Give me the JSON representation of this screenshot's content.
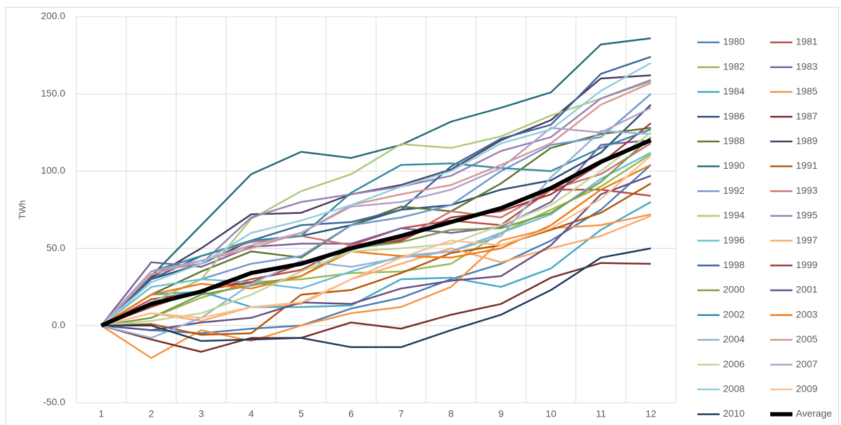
{
  "chart_data": {
    "type": "line",
    "y_label": "TWh",
    "categories": [
      "1",
      "2",
      "3",
      "4",
      "5",
      "6",
      "7",
      "8",
      "9",
      "10",
      "11",
      "12"
    ],
    "ylim": [
      -50,
      200
    ],
    "yticks": [
      {
        "value": -50,
        "label": "-50.0"
      },
      {
        "value": 0,
        "label": "0.0"
      },
      {
        "value": 50,
        "label": "50.0"
      },
      {
        "value": 100,
        "label": "100.0"
      },
      {
        "value": 150,
        "label": "150.0"
      },
      {
        "value": 200,
        "label": "200.0"
      }
    ],
    "grid": true,
    "legend": "right",
    "series": [
      {
        "name": "1980",
        "color": "#4a7ebb",
        "values": [
          0,
          -3,
          -5,
          -2,
          0,
          11,
          18,
          30,
          40,
          55,
          75,
          104
        ]
      },
      {
        "name": "1981",
        "color": "#be4b48",
        "values": [
          0,
          17,
          22,
          30,
          36,
          52,
          63,
          68,
          65,
          88,
          88,
          84
        ]
      },
      {
        "name": "1982",
        "color": "#98b954",
        "values": [
          0,
          5,
          18,
          28,
          30,
          34,
          35,
          40,
          60,
          75,
          90,
          111
        ]
      },
      {
        "name": "1983",
        "color": "#7d60a0",
        "values": [
          0,
          41,
          38,
          51,
          53,
          53,
          63,
          60,
          64,
          80,
          117,
          120
        ]
      },
      {
        "name": "1984",
        "color": "#46aac5",
        "values": [
          0,
          20,
          22,
          12,
          12,
          13,
          30,
          31,
          25,
          37,
          62,
          80
        ]
      },
      {
        "name": "1985",
        "color": "#f69544",
        "values": [
          0,
          -21,
          -3,
          -10,
          0,
          8,
          12,
          25,
          55,
          63,
          65,
          72
        ]
      },
      {
        "name": "1986",
        "color": "#2c4d75",
        "values": [
          0,
          30,
          40,
          55,
          58,
          65,
          75,
          78,
          88,
          94,
          112,
          143
        ]
      },
      {
        "name": "1987",
        "color": "#772c2a",
        "values": [
          0,
          -9,
          -17,
          -8,
          -8,
          2,
          -2,
          7,
          14,
          31,
          40.5,
          40
        ]
      },
      {
        "name": "1988",
        "color": "#5f7530",
        "values": [
          0,
          20,
          35,
          48,
          44,
          65,
          77,
          74,
          92,
          115,
          124,
          128
        ]
      },
      {
        "name": "1989",
        "color": "#4d3b62",
        "values": [
          0,
          31,
          50,
          72,
          73,
          85,
          91,
          101,
          120,
          133,
          160,
          162
        ]
      },
      {
        "name": "1990",
        "color": "#276a7c",
        "values": [
          0,
          32,
          65,
          98,
          112.5,
          108.5,
          117,
          132,
          141,
          151,
          182,
          186
        ]
      },
      {
        "name": "1991",
        "color": "#b65708",
        "values": [
          0,
          1,
          -6,
          -5,
          20,
          23,
          34,
          47,
          52,
          62,
          73,
          92
        ]
      },
      {
        "name": "1992",
        "color": "#729aca",
        "values": [
          0,
          15,
          30,
          40,
          45,
          65,
          70,
          78,
          100,
          117,
          122,
          150
        ]
      },
      {
        "name": "1993",
        "color": "#cd7371",
        "values": [
          0,
          35,
          45,
          54,
          58,
          52,
          56,
          74,
          70,
          88,
          98,
          118
        ]
      },
      {
        "name": "1994",
        "color": "#afc97a",
        "values": [
          0,
          15,
          30,
          69,
          87,
          98,
          117.5,
          115,
          122.5,
          136,
          147,
          158
        ]
      },
      {
        "name": "1995",
        "color": "#9983b5",
        "values": [
          0,
          35,
          40,
          70,
          80,
          85,
          90,
          97,
          113,
          122,
          147,
          159
        ]
      },
      {
        "name": "1996",
        "color": "#6fbdd1",
        "values": [
          0,
          25,
          30,
          28,
          24,
          35,
          45,
          48,
          60,
          72,
          95,
          112
        ]
      },
      {
        "name": "1997",
        "color": "#f9ab6b",
        "values": [
          0,
          8,
          3,
          12,
          14,
          30,
          40,
          50,
          41,
          50,
          58,
          71
        ]
      },
      {
        "name": "1998",
        "color": "#3a679c",
        "values": [
          0,
          30,
          45,
          55,
          65,
          67,
          75,
          103,
          121,
          130,
          163,
          174
        ]
      },
      {
        "name": "1999",
        "color": "#9f3b38",
        "values": [
          0,
          12,
          23,
          28,
          40,
          50,
          55,
          70,
          74,
          85,
          105,
          131
        ]
      },
      {
        "name": "2000",
        "color": "#7f9a48",
        "values": [
          0,
          5,
          20,
          26,
          32,
          50,
          54,
          62,
          63,
          73,
          93,
          122
        ]
      },
      {
        "name": "2001",
        "color": "#664f86",
        "values": [
          0,
          -3,
          2,
          5,
          15,
          14,
          24,
          29,
          32,
          52,
          85,
          97
        ]
      },
      {
        "name": "2002",
        "color": "#358ca3",
        "values": [
          0,
          35,
          45,
          55,
          58,
          86,
          104,
          105,
          102,
          100,
          115,
          127
        ]
      },
      {
        "name": "2003",
        "color": "#f27a14",
        "values": [
          0,
          20,
          27,
          24,
          32,
          48,
          45,
          44,
          50,
          65,
          88,
          104
        ]
      },
      {
        "name": "2004",
        "color": "#95b3d7",
        "values": [
          0,
          -8,
          5,
          27,
          42,
          38,
          44,
          48,
          58,
          96,
          126,
          124
        ]
      },
      {
        "name": "2005",
        "color": "#d99694",
        "values": [
          0,
          33,
          42,
          50,
          60,
          78,
          85,
          91,
          104,
          118,
          143,
          157
        ]
      },
      {
        "name": "2006",
        "color": "#c3d69b",
        "values": [
          0,
          3,
          8,
          20,
          35,
          48,
          50,
          53,
          65,
          78,
          100,
          125
        ]
      },
      {
        "name": "2007",
        "color": "#b3a2c7",
        "values": [
          0,
          35,
          42,
          52,
          60,
          77,
          80,
          88,
          102,
          128,
          125,
          141
        ]
      },
      {
        "name": "2008",
        "color": "#93cddd",
        "values": [
          0,
          28,
          40,
          60,
          68,
          78,
          90,
          100,
          118,
          127,
          152,
          170
        ]
      },
      {
        "name": "2009",
        "color": "#fac090",
        "values": [
          0,
          8,
          5,
          12,
          15,
          30,
          44,
          55,
          52,
          63,
          82,
          110
        ]
      },
      {
        "name": "2010",
        "color": "#1f3b5c",
        "values": [
          0,
          0,
          -10,
          -9,
          -8,
          -14,
          -14,
          -3,
          7,
          23,
          44,
          50
        ]
      },
      {
        "name": "Average",
        "color": "#000000",
        "width": 6,
        "values": [
          0,
          14,
          22,
          34,
          40,
          50,
          58,
          67,
          76,
          89,
          106,
          120
        ]
      }
    ]
  }
}
